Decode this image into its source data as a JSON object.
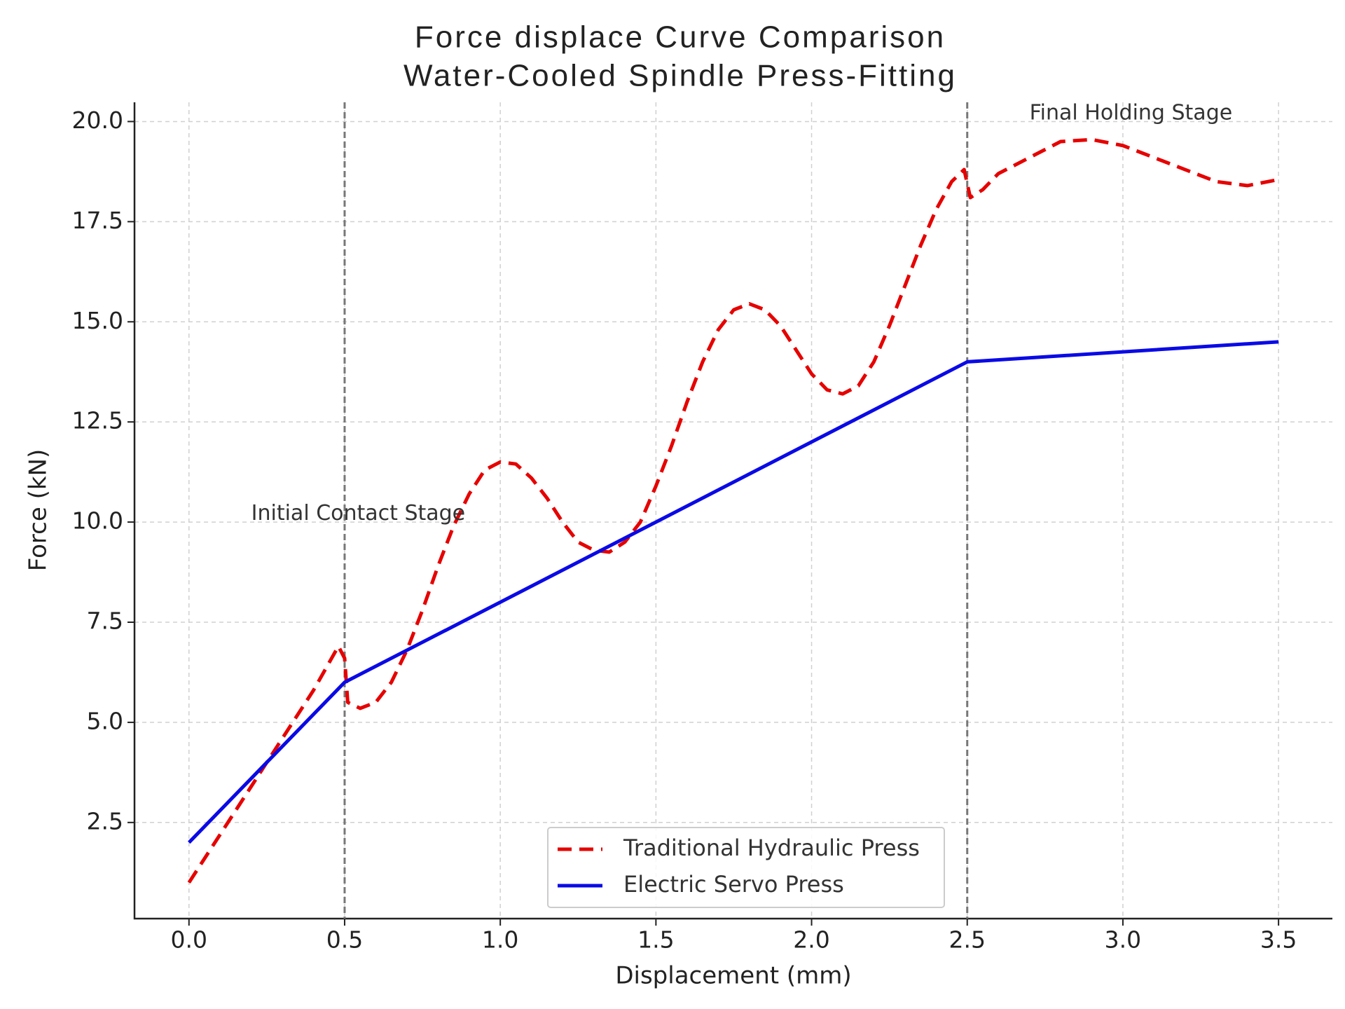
{
  "chart_data": {
    "type": "line",
    "title": "Force displace Curve Comparison",
    "subtitle": "Water-Cooled Spindle Press-Fitting",
    "x_label": "Displacement (mm)",
    "y_label": "Force (kN)",
    "xlim": [
      -0.175,
      3.673
    ],
    "ylim": [
      0.1,
      20.48
    ],
    "xticks": [
      {
        "value": 0,
        "label": "0.0"
      },
      0.5,
      {
        "value": 1,
        "label": "1.0"
      },
      1.5,
      {
        "value": 2,
        "label": "2.0"
      },
      2.5,
      {
        "value": 3,
        "label": "3.0"
      },
      3.5
    ],
    "yticks": [
      2.5,
      {
        "value": 5,
        "label": "5.0"
      },
      7.5,
      {
        "value": 10,
        "label": "10.0"
      },
      12.5,
      {
        "value": 15,
        "label": "15.0"
      },
      17.5,
      {
        "value": 20,
        "label": "20.0"
      }
    ],
    "grid": true,
    "legend": "lower center",
    "vlines": [
      0.5,
      2.5
    ],
    "annotations": [
      {
        "text": "Initial Contact Stage",
        "x": 0.2,
        "y": 10.2
      },
      {
        "text": "Final Holding Stage",
        "x": 2.7,
        "y": 20.2
      }
    ],
    "series": [
      {
        "name": "Traditional Hydraulic Press",
        "color": "#e60000",
        "dashed": true,
        "x": [
          0,
          0.1,
          0.2,
          0.3,
          0.4,
          0.48,
          0.5,
          0.51,
          0.55,
          0.6,
          0.65,
          0.7,
          0.75,
          0.8,
          0.85,
          0.9,
          0.95,
          1.0,
          1.05,
          1.1,
          1.15,
          1.2,
          1.25,
          1.3,
          1.35,
          1.4,
          1.45,
          1.5,
          1.55,
          1.6,
          1.65,
          1.7,
          1.75,
          1.8,
          1.85,
          1.9,
          1.95,
          2.0,
          2.05,
          2.1,
          2.15,
          2.2,
          2.25,
          2.3,
          2.35,
          2.4,
          2.45,
          2.49,
          2.51,
          2.55,
          2.6,
          2.7,
          2.8,
          2.9,
          3.0,
          3.1,
          3.2,
          3.3,
          3.4,
          3.5
        ],
        "values": [
          1.0,
          2.2,
          3.4,
          4.6,
          5.8,
          6.9,
          6.6,
          5.5,
          5.35,
          5.5,
          6.0,
          6.8,
          7.8,
          8.9,
          9.9,
          10.7,
          11.3,
          11.5,
          11.45,
          11.1,
          10.6,
          10.0,
          9.5,
          9.3,
          9.25,
          9.5,
          10.0,
          10.9,
          11.9,
          13.0,
          14.0,
          14.8,
          15.3,
          15.45,
          15.3,
          14.9,
          14.3,
          13.7,
          13.3,
          13.2,
          13.4,
          14.0,
          14.9,
          15.9,
          16.9,
          17.8,
          18.5,
          18.8,
          18.1,
          18.3,
          18.7,
          19.1,
          19.5,
          19.55,
          19.4,
          19.1,
          18.8,
          18.5,
          18.4,
          18.55
        ]
      },
      {
        "name": "Electric Servo Press",
        "color": "#0a0ae6",
        "dashed": false,
        "x": [
          0,
          0.5,
          2.5,
          3.5
        ],
        "values": [
          2,
          6,
          14,
          14.5
        ]
      }
    ]
  }
}
